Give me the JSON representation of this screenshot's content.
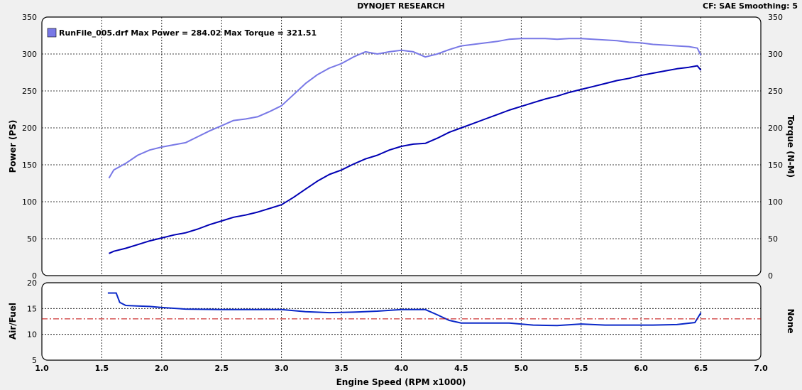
{
  "header": {
    "title": "DYNOJET RESEARCH",
    "info": "CF: SAE  Smoothing: 5"
  },
  "legend": {
    "text": "RunFile_005.drf Max Power = 284.02 Max Torque = 321.51"
  },
  "colors": {
    "power": "#0000b4",
    "torque": "#7878e6",
    "afr": "#0a28c8",
    "target": "#c00000",
    "background": "#f0f0f0",
    "plot": "#ffffff"
  },
  "chart_data": [
    {
      "type": "line",
      "xlabel": "Engine Speed (RPM x1000)",
      "ylabel": "Power (PS)",
      "y2label": "Torque (N-M)",
      "xlim": [
        1.0,
        7.0
      ],
      "ylim": [
        0,
        350
      ],
      "y2lim": [
        0,
        350
      ],
      "xticks": [
        "1.0",
        "1.5",
        "2.0",
        "2.5",
        "3.0",
        "3.5",
        "4.0",
        "4.5",
        "5.0",
        "5.5",
        "6.0",
        "6.5",
        "7.0"
      ],
      "yticks": [
        "0",
        "50",
        "100",
        "150",
        "200",
        "250",
        "300",
        "350"
      ],
      "grid": true,
      "legend_position": "top-left",
      "series": [
        {
          "name": "RunFile_005.drf",
          "key": "power",
          "axis": "left",
          "x": [
            1.56,
            1.6,
            1.7,
            1.8,
            1.9,
            2.0,
            2.1,
            2.2,
            2.3,
            2.4,
            2.5,
            2.6,
            2.7,
            2.8,
            2.9,
            3.0,
            3.1,
            3.2,
            3.3,
            3.4,
            3.5,
            3.6,
            3.7,
            3.8,
            3.9,
            4.0,
            4.1,
            4.2,
            4.3,
            4.4,
            4.5,
            4.6,
            4.7,
            4.8,
            4.9,
            5.0,
            5.1,
            5.2,
            5.3,
            5.4,
            5.5,
            5.6,
            5.7,
            5.8,
            5.9,
            6.0,
            6.1,
            6.2,
            6.3,
            6.4,
            6.47,
            6.5
          ],
          "y": [
            30,
            33,
            37,
            42,
            47,
            51,
            55,
            58,
            63,
            69,
            74,
            79,
            82,
            86,
            91,
            96,
            106,
            117,
            128,
            137,
            143,
            151,
            158,
            163,
            170,
            175,
            178,
            179,
            186,
            194,
            200,
            206,
            212,
            218,
            224,
            229,
            234,
            239,
            243,
            248,
            252,
            256,
            260,
            264,
            267,
            271,
            274,
            277,
            280,
            282,
            284,
            278
          ]
        },
        {
          "name": "RunFile_005.drf",
          "key": "torque",
          "axis": "right",
          "x": [
            1.56,
            1.6,
            1.7,
            1.8,
            1.9,
            2.0,
            2.1,
            2.2,
            2.3,
            2.4,
            2.5,
            2.6,
            2.7,
            2.8,
            2.9,
            3.0,
            3.1,
            3.2,
            3.3,
            3.4,
            3.5,
            3.6,
            3.7,
            3.8,
            3.9,
            4.0,
            4.1,
            4.2,
            4.3,
            4.4,
            4.5,
            4.6,
            4.7,
            4.8,
            4.9,
            5.0,
            5.1,
            5.2,
            5.3,
            5.4,
            5.5,
            5.6,
            5.7,
            5.8,
            5.9,
            6.0,
            6.1,
            6.2,
            6.3,
            6.4,
            6.47,
            6.5
          ],
          "y": [
            132,
            143,
            152,
            163,
            170,
            174,
            177,
            180,
            188,
            196,
            203,
            210,
            212,
            215,
            222,
            230,
            245,
            260,
            272,
            281,
            287,
            296,
            303,
            300,
            303,
            305,
            303,
            296,
            300,
            306,
            311,
            313,
            315,
            317,
            320,
            321,
            321,
            321,
            320,
            321,
            321,
            320,
            319,
            318,
            316,
            315,
            313,
            312,
            311,
            310,
            308,
            298
          ]
        }
      ]
    },
    {
      "type": "line",
      "ylabel": "Air/Fuel",
      "y2label": "None",
      "xlim": [
        1.0,
        7.0
      ],
      "ylim": [
        5,
        20
      ],
      "yticks": [
        "5",
        "10",
        "15",
        "20"
      ],
      "grid": true,
      "series": [
        {
          "key": "afr",
          "x": [
            1.55,
            1.62,
            1.65,
            1.7,
            1.8,
            1.9,
            2.0,
            2.2,
            2.5,
            2.8,
            3.0,
            3.2,
            3.4,
            3.6,
            3.8,
            4.0,
            4.2,
            4.3,
            4.4,
            4.5,
            4.7,
            4.9,
            5.1,
            5.3,
            5.5,
            5.7,
            5.9,
            6.1,
            6.3,
            6.45,
            6.5
          ],
          "y": [
            18.0,
            18.0,
            16.2,
            15.6,
            15.5,
            15.4,
            15.2,
            14.9,
            14.8,
            14.8,
            14.8,
            14.4,
            14.2,
            14.3,
            14.5,
            14.8,
            14.8,
            13.8,
            12.7,
            12.2,
            12.2,
            12.2,
            11.8,
            11.7,
            12.0,
            11.8,
            11.8,
            11.8,
            11.9,
            12.3,
            14.2
          ]
        },
        {
          "key": "target",
          "x": [
            1.0,
            7.0
          ],
          "y": [
            13.0,
            13.0
          ]
        }
      ]
    }
  ]
}
